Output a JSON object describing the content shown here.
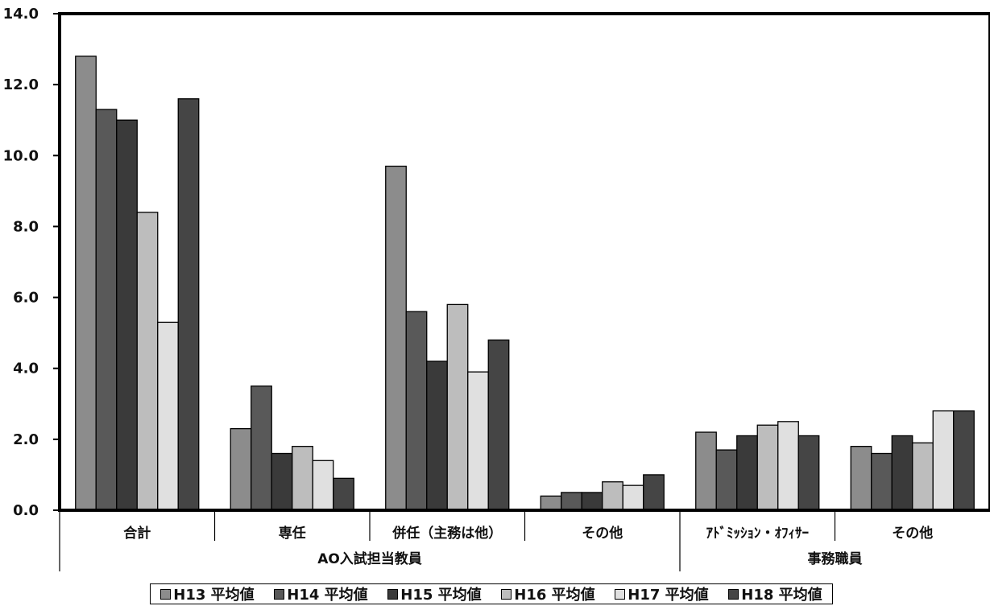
{
  "chart_data": {
    "type": "bar",
    "groups": [
      {
        "label": "AO入試担当教員",
        "categories": [
          "合計",
          "専任",
          "併任（主務は他）",
          "その他"
        ]
      },
      {
        "label": "事務職員",
        "categories": [
          "ｱﾄﾞﾐｯｼｮﾝ・ｵﾌｨｻｰ",
          "その他"
        ]
      }
    ],
    "categories": [
      "合計",
      "専任",
      "併任（主務は他）",
      "その他",
      "ｱﾄﾞﾐｯｼｮﾝ・ｵﾌｨｻｰ",
      "その他"
    ],
    "series": [
      {
        "name": "H13 平均値",
        "color": "#8c8c8c",
        "values": [
          12.8,
          2.3,
          9.7,
          0.4,
          2.2,
          1.8
        ]
      },
      {
        "name": "H14 平均値",
        "color": "#595959",
        "values": [
          11.3,
          3.5,
          5.6,
          0.5,
          1.7,
          1.6
        ]
      },
      {
        "name": "H15 平均値",
        "color": "#3a3a3a",
        "values": [
          11.0,
          1.6,
          4.2,
          0.5,
          2.1,
          2.1
        ]
      },
      {
        "name": "H16 平均値",
        "color": "#bdbdbd",
        "values": [
          8.4,
          1.8,
          5.8,
          0.8,
          2.4,
          1.9
        ]
      },
      {
        "name": "H17 平均値",
        "color": "#e0e0e0",
        "values": [
          5.3,
          1.4,
          3.9,
          0.7,
          2.5,
          2.8
        ]
      },
      {
        "name": "H18 平均値",
        "color": "#454545",
        "values": [
          11.6,
          0.9,
          4.8,
          1.0,
          2.1,
          2.8
        ]
      }
    ],
    "ylim": [
      0,
      14
    ],
    "yticks": [
      "0.0",
      "2.0",
      "4.0",
      "6.0",
      "8.0",
      "10.0",
      "12.0",
      "14.0"
    ],
    "grid": false,
    "legend_position": "bottom"
  }
}
